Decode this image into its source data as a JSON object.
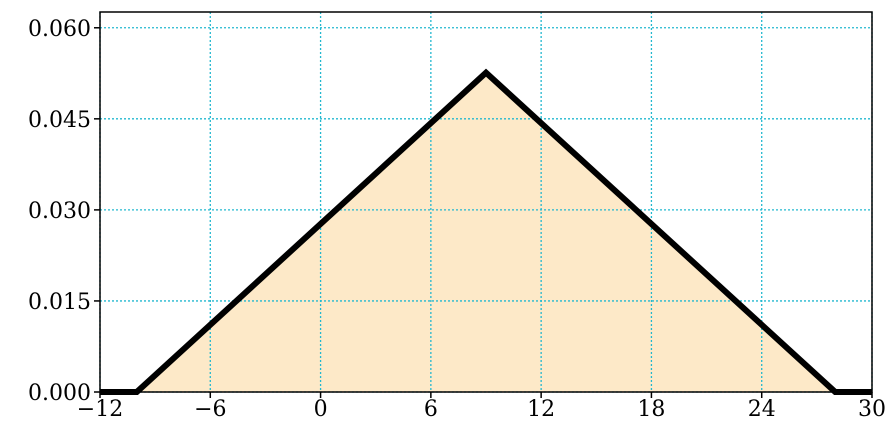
{
  "chart_data": {
    "type": "line",
    "x": [
      -12,
      -10,
      9,
      28,
      30
    ],
    "series": [
      {
        "color": "#000000",
        "fill": "#fde9c8",
        "values": [
          0,
          0,
          0.0526,
          0,
          0
        ]
      }
    ],
    "xlim": [
      -12,
      30
    ],
    "xticks": [
      {
        "value": -12,
        "label": "−12"
      },
      {
        "value": -6,
        "label": "−6"
      },
      0,
      6,
      12,
      18,
      24,
      30
    ],
    "ylim": [
      0,
      0.0626
    ],
    "yticks": [
      {
        "value": 0,
        "label": "0.000"
      },
      {
        "value": 0.015,
        "label": "0.015"
      },
      {
        "value": 0.03,
        "label": "0.030"
      },
      {
        "value": 0.045,
        "label": "0.045"
      },
      {
        "value": 0.06,
        "label": "0.060"
      }
    ],
    "grid": true,
    "grid_color": "#22b8cf"
  }
}
